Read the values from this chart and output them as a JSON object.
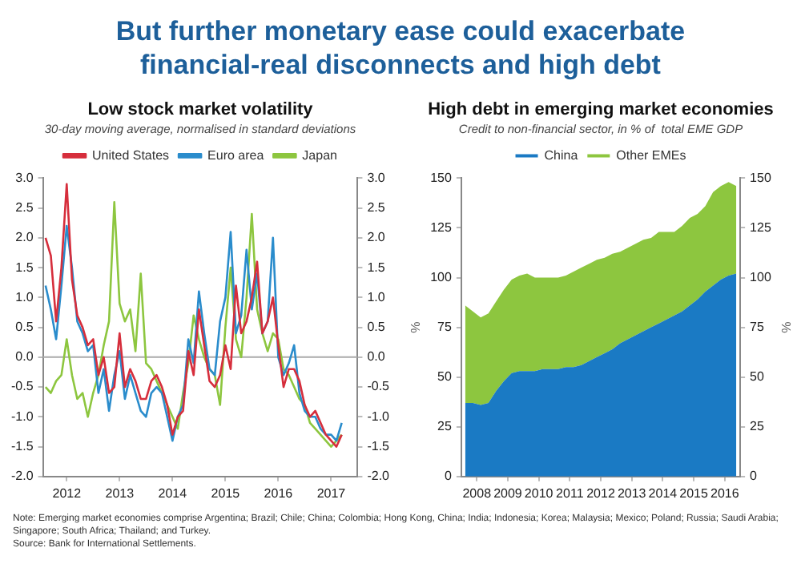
{
  "chart_data": [
    {
      "type": "other",
      "title": "But further monetary ease could exacerbate financial-real disconnects and high debt",
      "annotations": [
        "Note: Emerging market economies comprise Argentina; Brazil; Chile; China; Colombia; Hong Kong, China; India; Indonesia; Korea; Malaysia; Mexico; Poland; Russia; Saudi Arabia; Singapore; South Africa; Thailand; and Turkey.",
        "Source: Bank for International Settlements."
      ]
    },
    {
      "type": "line",
      "title": "Low stock market volatility",
      "subtitle": "30-day moving average, normalised in standard deviations",
      "x": [
        2011.6,
        2011.7,
        2011.8,
        2011.9,
        2012.0,
        2012.1,
        2012.2,
        2012.3,
        2012.4,
        2012.5,
        2012.6,
        2012.7,
        2012.8,
        2012.9,
        2013.0,
        2013.1,
        2013.2,
        2013.3,
        2013.4,
        2013.5,
        2013.6,
        2013.7,
        2013.8,
        2013.9,
        2014.0,
        2014.1,
        2014.2,
        2014.3,
        2014.4,
        2014.5,
        2014.6,
        2014.7,
        2014.8,
        2014.9,
        2015.0,
        2015.1,
        2015.2,
        2015.3,
        2015.4,
        2015.5,
        2015.6,
        2015.7,
        2015.8,
        2015.9,
        2016.0,
        2016.1,
        2016.2,
        2016.3,
        2016.4,
        2016.5,
        2016.6,
        2016.7,
        2016.8,
        2016.9,
        2017.0,
        2017.1,
        2017.2
      ],
      "series": [
        {
          "name": "United States",
          "color": "#d62e3c",
          "values": [
            2.0,
            1.7,
            0.6,
            1.5,
            2.9,
            1.3,
            0.7,
            0.5,
            0.2,
            0.3,
            -0.3,
            0.0,
            -0.6,
            -0.5,
            0.4,
            -0.5,
            -0.2,
            -0.4,
            -0.7,
            -0.7,
            -0.4,
            -0.3,
            -0.5,
            -0.8,
            -1.3,
            -1.0,
            -0.9,
            0.1,
            -0.3,
            0.8,
            0.2,
            -0.4,
            -0.5,
            -0.3,
            0.2,
            -0.2,
            1.2,
            0.4,
            0.6,
            1.0,
            1.6,
            0.4,
            0.6,
            1.0,
            0.2,
            -0.5,
            -0.2,
            -0.2,
            -0.4,
            -0.8,
            -1.0,
            -0.9,
            -1.1,
            -1.3,
            -1.4,
            -1.5,
            -1.3
          ]
        },
        {
          "name": "Euro area",
          "color": "#2a8ccc",
          "values": [
            1.2,
            0.8,
            0.3,
            1.2,
            2.2,
            1.5,
            0.6,
            0.4,
            0.1,
            0.2,
            -0.6,
            -0.2,
            -0.9,
            -0.3,
            0.1,
            -0.7,
            -0.3,
            -0.6,
            -0.9,
            -1.0,
            -0.6,
            -0.5,
            -0.6,
            -1.0,
            -1.4,
            -1.0,
            -0.8,
            0.3,
            -0.1,
            1.1,
            0.4,
            -0.2,
            -0.3,
            0.6,
            1.0,
            2.1,
            0.4,
            0.7,
            1.8,
            0.8,
            1.4,
            0.4,
            0.6,
            2.0,
            0.0,
            -0.3,
            -0.1,
            0.2,
            -0.6,
            -0.9,
            -1.0,
            -1.0,
            -1.2,
            -1.3,
            -1.3,
            -1.4,
            -1.1
          ]
        },
        {
          "name": "Japan",
          "color": "#8dc63f",
          "values": [
            -0.5,
            -0.6,
            -0.4,
            -0.3,
            0.3,
            -0.3,
            -0.7,
            -0.6,
            -1.0,
            -0.6,
            -0.3,
            0.2,
            0.6,
            2.6,
            0.9,
            0.6,
            0.8,
            0.1,
            1.4,
            -0.1,
            -0.2,
            -0.4,
            -0.6,
            -0.8,
            -1.0,
            -1.2,
            -0.6,
            -0.1,
            0.7,
            0.3,
            0.0,
            -0.2,
            -0.3,
            -0.8,
            0.5,
            1.5,
            0.3,
            0.0,
            1.0,
            2.4,
            0.8,
            0.4,
            0.1,
            0.4,
            0.3,
            -0.2,
            -0.3,
            -0.5,
            -0.7,
            -0.8,
            -1.1,
            -1.2,
            -1.3,
            -1.4,
            -1.5,
            -1.4,
            -1.3
          ]
        }
      ],
      "xlim": [
        2011.55,
        2017.5
      ],
      "xticks": [
        2012,
        2013,
        2014,
        2015,
        2016,
        2017
      ],
      "ylim": [
        -2,
        3
      ],
      "yticks": [
        {
          "value": -2,
          "label": "-2.0"
        },
        {
          "value": -1.5,
          "label": "-1.5"
        },
        {
          "value": -1,
          "label": "-1.0"
        },
        {
          "value": -0.5,
          "label": "-0.5"
        },
        {
          "value": 0,
          "label": "0.0"
        },
        {
          "value": 0.5,
          "label": "0.5"
        },
        {
          "value": 1,
          "label": "1.0"
        },
        {
          "value": 1.5,
          "label": "1.5"
        },
        {
          "value": 2,
          "label": "2.0"
        },
        {
          "value": 2.5,
          "label": "2.5"
        },
        {
          "value": 3,
          "label": "3.0"
        }
      ],
      "y2lim": [
        -2,
        3
      ],
      "y2ticks": [
        {
          "value": -2,
          "label": "-2.0"
        },
        {
          "value": -1.5,
          "label": "-1.5"
        },
        {
          "value": -1,
          "label": "-1.0"
        },
        {
          "value": -0.5,
          "label": "-0.5"
        },
        {
          "value": 0,
          "label": "0.0"
        },
        {
          "value": 0.5,
          "label": "0.5"
        },
        {
          "value": 1,
          "label": "1.0"
        },
        {
          "value": 1.5,
          "label": "1.5"
        },
        {
          "value": 2,
          "label": "2.0"
        },
        {
          "value": 2.5,
          "label": "2.5"
        },
        {
          "value": 3,
          "label": "3.0"
        }
      ],
      "ref_lines": [
        {
          "axis": "y",
          "value": 0,
          "color": "#aaaaaa"
        }
      ],
      "legend": "top",
      "marker": "none"
    },
    {
      "type": "area",
      "stacked": true,
      "title": "High debt in emerging market economies",
      "subtitle": "Credit to non-financial sector, in % of  total EME GDP",
      "ylabel": "%",
      "y2label": "%",
      "x": [
        2008.125,
        2008.375,
        2008.625,
        2008.875,
        2009.125,
        2009.375,
        2009.625,
        2009.875,
        2010.125,
        2010.375,
        2010.625,
        2010.875,
        2011.125,
        2011.375,
        2011.625,
        2011.875,
        2012.125,
        2012.375,
        2012.625,
        2012.875,
        2013.125,
        2013.375,
        2013.625,
        2013.875,
        2014.125,
        2014.375,
        2014.625,
        2014.875,
        2015.125,
        2015.375,
        2015.625,
        2015.875,
        2016.125,
        2016.375,
        2016.625,
        2016.875
      ],
      "series": [
        {
          "name": "China",
          "color": "#1a7ac4",
          "values": [
            37,
            37,
            36,
            37,
            43,
            48,
            52,
            53,
            53,
            53,
            54,
            54,
            54,
            55,
            55,
            56,
            58,
            60,
            62,
            64,
            67,
            69,
            71,
            73,
            75,
            77,
            79,
            81,
            83,
            86,
            89,
            93,
            96,
            99,
            101,
            102
          ]
        },
        {
          "name": "Other EMEs",
          "color": "#8dc63f",
          "values": [
            49,
            46,
            44,
            45,
            45,
            46,
            47,
            48,
            49,
            47,
            46,
            46,
            46,
            46,
            48,
            49,
            49,
            49,
            48,
            48,
            46,
            46,
            46,
            46,
            45,
            46,
            44,
            42,
            43,
            44,
            43,
            43,
            47,
            47,
            47,
            44
          ]
        }
      ],
      "xlim": [
        2008,
        2017
      ],
      "xticks": [
        {
          "value": 2008.5,
          "label": "2008"
        },
        {
          "value": 2009.5,
          "label": "2009"
        },
        {
          "value": 2010.5,
          "label": "2010"
        },
        {
          "value": 2011.5,
          "label": "2011"
        },
        {
          "value": 2012.5,
          "label": "2012"
        },
        {
          "value": 2013.5,
          "label": "2013"
        },
        {
          "value": 2014.5,
          "label": "2014"
        },
        {
          "value": 2015.5,
          "label": "2015"
        },
        {
          "value": 2016.5,
          "label": "2016"
        }
      ],
      "ylim": [
        0,
        150
      ],
      "yticks": [
        0,
        25,
        50,
        75,
        100,
        125,
        150
      ],
      "y2lim": [
        0,
        150
      ],
      "y2ticks": [
        0,
        25,
        50,
        75,
        100,
        125,
        150
      ],
      "legend": "top",
      "marker": "none"
    }
  ]
}
